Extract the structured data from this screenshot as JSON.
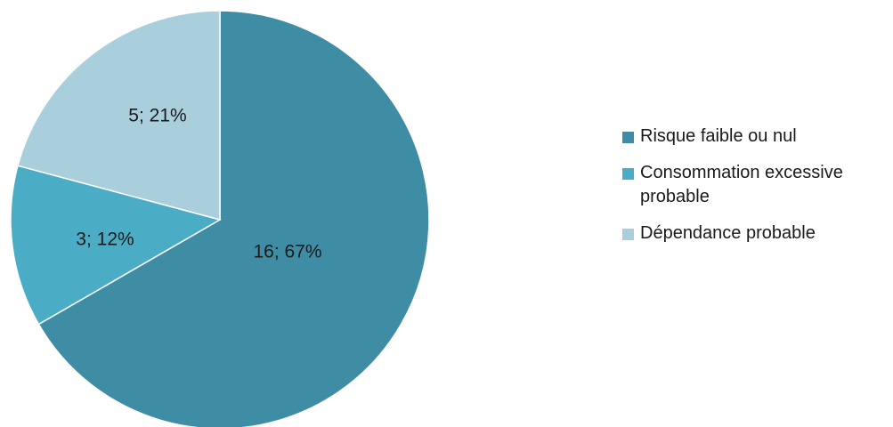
{
  "chart_data": {
    "type": "pie",
    "title": "",
    "start_angle_deg": 0,
    "direction": "clockwise",
    "slices": [
      {
        "name": "Risque faible ou nul",
        "value": 16,
        "percent": 67,
        "label": "16; 67%",
        "color": "#3E8DA4"
      },
      {
        "name": "Consommation excessive probable",
        "value": 3,
        "percent": 12,
        "label": "3; 12%",
        "color": "#4BACC6"
      },
      {
        "name": "Dépendance probable",
        "value": 5,
        "percent": 21,
        "label": "5; 21%",
        "color": "#A9CFDD"
      }
    ],
    "legend": {
      "position": "right",
      "items": [
        {
          "label": "Risque faible ou nul",
          "color": "#3E8DA4"
        },
        {
          "label": "Consommation excessive probable",
          "color": "#4BACC6"
        },
        {
          "label": "Dépendance probable",
          "color": "#A9CFDD"
        }
      ]
    }
  }
}
